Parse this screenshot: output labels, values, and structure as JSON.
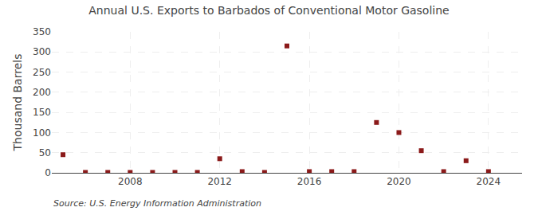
{
  "chart_data": {
    "type": "scatter",
    "title": "Annual U.S. Exports to Barbados of Conventional Motor Gasoline",
    "ylabel": "Thousand Barrels",
    "annotations": [
      "Source: U.S. Energy Information Administration"
    ],
    "x": [
      2005,
      2006,
      2007,
      2008,
      2009,
      2010,
      2011,
      2012,
      2013,
      2014,
      2015,
      2016,
      2017,
      2018,
      2019,
      2020,
      2021,
      2022,
      2023,
      2024
    ],
    "values": [
      45,
      1,
      1,
      1,
      1,
      1,
      1,
      35,
      3,
      1,
      315,
      3,
      3,
      3,
      125,
      100,
      55,
      3,
      30,
      3
    ],
    "color": "#8b1a1a",
    "marker": "square",
    "xlim": [
      2004.5,
      2025.5
    ],
    "ylim": [
      0,
      350
    ],
    "xticks": [
      2008,
      2012,
      2016,
      2020,
      2024
    ],
    "yticks": [
      0,
      50,
      100,
      150,
      200,
      250,
      300,
      350
    ],
    "grid": true
  }
}
